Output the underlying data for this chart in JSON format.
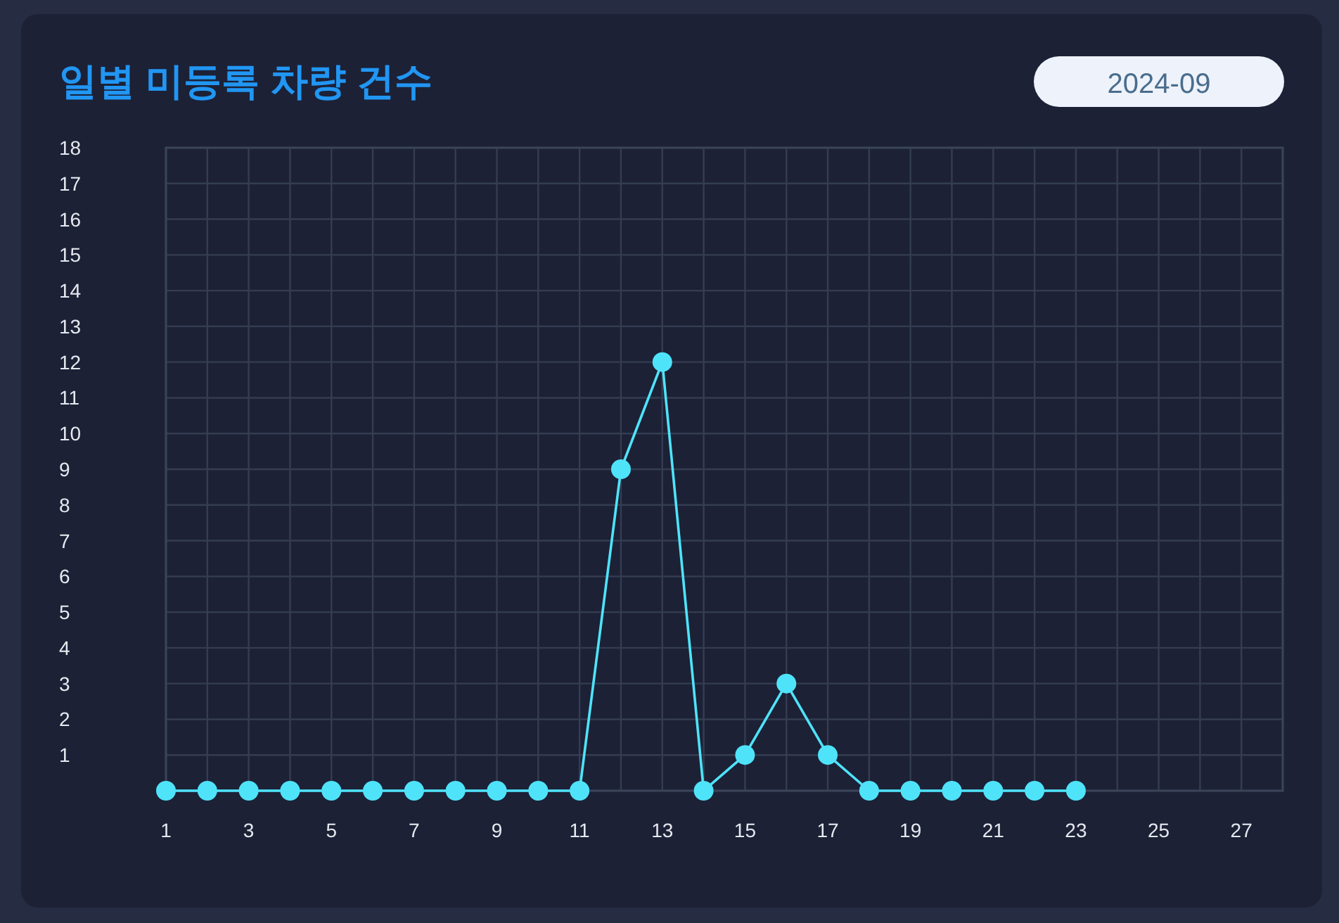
{
  "chart_data": {
    "type": "line",
    "title": "일별 미등록 차량 건수",
    "annotations": [
      "2024-09"
    ],
    "x": [
      1,
      2,
      3,
      4,
      5,
      6,
      7,
      8,
      9,
      10,
      11,
      12,
      13,
      14,
      15,
      16,
      17,
      18,
      19,
      20,
      21,
      22,
      23
    ],
    "series": [
      {
        "color": "#4fe3f9",
        "values": [
          0,
          0,
          0,
          0,
          0,
          0,
          0,
          0,
          0,
          0,
          0,
          9,
          12,
          0,
          1,
          3,
          1,
          0,
          0,
          0,
          0,
          0,
          0
        ]
      }
    ],
    "xlim": [
      1,
      28
    ],
    "xticks": [
      1,
      {
        "value": 2,
        "label": null
      },
      3,
      {
        "value": 4,
        "label": null
      },
      5,
      {
        "value": 6,
        "label": null
      },
      7,
      {
        "value": 8,
        "label": null
      },
      9,
      {
        "value": 10,
        "label": null
      },
      11,
      {
        "value": 12,
        "label": null
      },
      13,
      {
        "value": 14,
        "label": null
      },
      15,
      {
        "value": 16,
        "label": null
      },
      17,
      {
        "value": 18,
        "label": null
      },
      19,
      {
        "value": 20,
        "label": null
      },
      21,
      {
        "value": 22,
        "label": null
      },
      23,
      {
        "value": 24,
        "label": null
      },
      25,
      {
        "value": 26,
        "label": null
      },
      27,
      {
        "value": 28,
        "label": null
      }
    ],
    "ylim": [
      0,
      18
    ],
    "yticks": [
      {
        "value": 0,
        "label": null
      },
      1,
      2,
      3,
      4,
      5,
      6,
      7,
      8,
      9,
      10,
      11,
      12,
      13,
      14,
      15,
      16,
      17,
      18
    ],
    "grid": true,
    "marker": "circle",
    "line_style": "solid"
  }
}
